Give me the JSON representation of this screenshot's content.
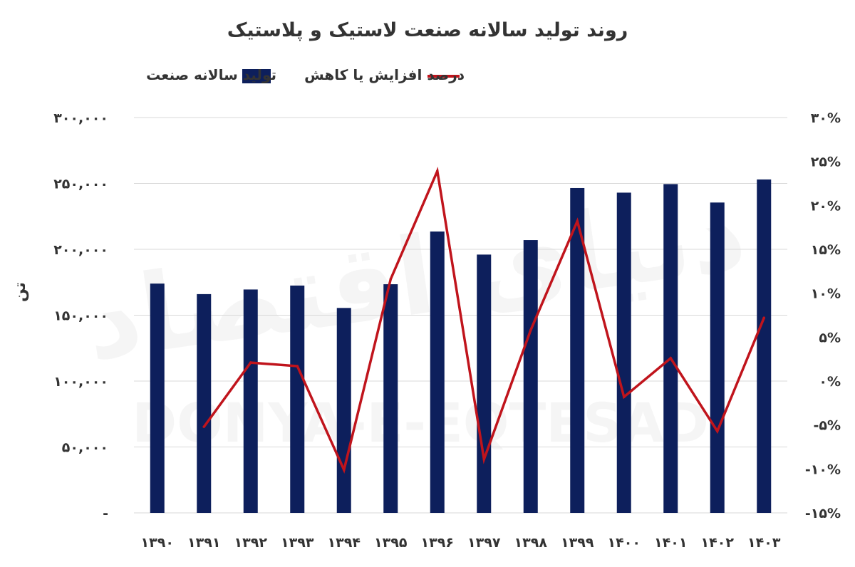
{
  "chart_data": {
    "type": "bar",
    "title": "روند تولید سالانه صنعت لاستیک و پلاستیک",
    "ylabel": "تن",
    "categories": [
      "۱۳۹۰",
      "۱۳۹۱",
      "۱۳۹۲",
      "۱۳۹۳",
      "۱۳۹۴",
      "۱۳۹۵",
      "۱۳۹۶",
      "۱۳۹۷",
      "۱۳۹۸",
      "۱۳۹۹",
      "۱۴۰۰",
      "۱۴۰۱",
      "۱۴۰۲",
      "۱۴۰۳"
    ],
    "series": [
      {
        "name": "تولید سالانه صنعت",
        "type": "bar",
        "axis": "left",
        "color": "#0d1f5c",
        "values": [
          174000,
          166000,
          169500,
          172500,
          155500,
          173500,
          213500,
          196000,
          207000,
          246500,
          243000,
          249500,
          235500,
          253000
        ]
      },
      {
        "name": "درصد افزایش یا کاهش",
        "type": "line",
        "axis": "right",
        "color": "#c0141c",
        "values": [
          null,
          -5.2,
          2.1,
          1.7,
          -10.1,
          11.6,
          23.9,
          -8.9,
          5.8,
          18.2,
          -1.8,
          2.6,
          -5.7,
          7.2
        ]
      }
    ],
    "ylim_left": [
      0,
      300000
    ],
    "ylim_right": [
      -15,
      30
    ],
    "y_left_ticks": [
      "-",
      "۵۰,۰۰۰",
      "۱۰۰,۰۰۰",
      "۱۵۰,۰۰۰",
      "۲۰۰,۰۰۰",
      "۲۵۰,۰۰۰",
      "۳۰۰,۰۰۰"
    ],
    "y_right_ticks": [
      "-۱۵%",
      "-۱۰%",
      "-۵%",
      "۰%",
      "۵%",
      "۱۰%",
      "۱۵%",
      "۲۰%",
      "۲۵%",
      "۳۰%"
    ],
    "grid": true,
    "legend_position": "top"
  },
  "watermark": {
    "latin": "DONYA-E-EQTESAD",
    "persian": "دنیای اقتصاد"
  }
}
